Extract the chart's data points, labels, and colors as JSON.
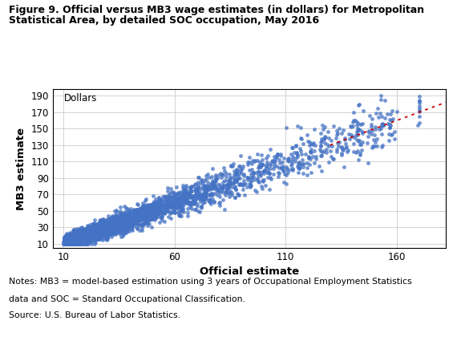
{
  "title_line1": "Figure 9. Official versus MB3 wage estimates (in dollars) for Metropolitan",
  "title_line2": "Statistical Area, by detailed SOC occupation, May 2016",
  "xlabel": "Official estimate",
  "ylabel": "MB3 estimate",
  "dollars_label": "Dollars",
  "xlim": [
    5,
    182
  ],
  "ylim": [
    5,
    198
  ],
  "xticks": [
    10,
    60,
    110,
    160
  ],
  "yticks": [
    10,
    30,
    50,
    70,
    90,
    110,
    130,
    150,
    170,
    190
  ],
  "scatter_color": "#4472C4",
  "scatter_alpha": 0.75,
  "scatter_size": 12,
  "ref_line_color": "#CC0000",
  "ref_line_x": [
    130,
    192
  ],
  "ref_line_y": [
    130,
    192
  ],
  "notes_line1": "Notes: MB3 = model-based estimation using 3 years of Occupational Employment Statistics",
  "notes_line2": "data and SOC = Standard Occupational Classification.",
  "notes_line3": "Source: U.S. Bureau of Labor Statistics.",
  "n_points": 4000,
  "seed": 42
}
